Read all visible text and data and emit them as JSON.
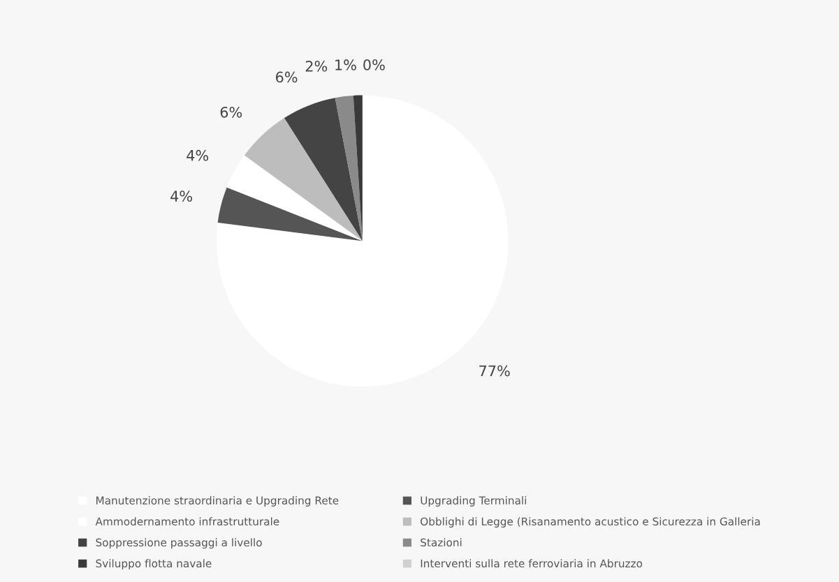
{
  "chart_data": {
    "type": "pie",
    "categories": [
      "Manutenzione straordinaria e Upgrading Rete",
      "Upgrading Terminali",
      "Ammodernamento infrastrutturale",
      "Obblighi di Legge (Risanamento acustico e Sicurezza in Galleria",
      "Soppressione passaggi a livello",
      "Stazioni",
      "Sviluppo flotta navale",
      "Interventi sulla rete ferroviaria in Abruzzo"
    ],
    "values": [
      77,
      4,
      4,
      6,
      6,
      2,
      1,
      0
    ],
    "colors": [
      "#ffffff",
      "#555555",
      "#ffffff",
      "#bdbdbd",
      "#444444",
      "#8a8a8a",
      "#3a3a3a",
      "#d0d0d0"
    ],
    "value_labels": [
      "77%",
      "4%",
      "4%",
      "6%",
      "6%",
      "2%",
      "1%",
      "0%"
    ],
    "legend": "bottom"
  }
}
